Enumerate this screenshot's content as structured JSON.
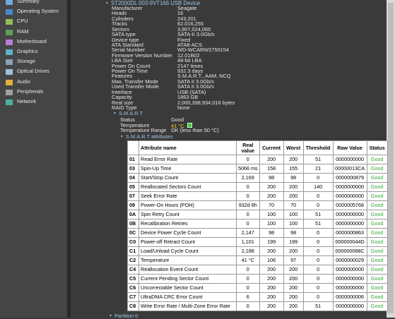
{
  "sidebar": [
    "Summary",
    "Operating System",
    "CPU",
    "RAM",
    "Motherboard",
    "Graphics",
    "Storage",
    "Optical Drives",
    "Audio",
    "Peripherals",
    "Network"
  ],
  "device": {
    "title": "ST2000DL 003-9VT166 USB Device",
    "properties": [
      [
        "Manufacturer",
        "Seagate"
      ],
      [
        "Heads",
        "16"
      ],
      [
        "Cylinders",
        "243,201"
      ],
      [
        "Tracks",
        "62,016,255"
      ],
      [
        "Sectors",
        "3,907,024,065"
      ],
      [
        "SATA type",
        "SATA-II 3.0Gb/s"
      ],
      [
        "Device type",
        "Fixed"
      ],
      [
        "ATA Standard",
        "ATA8-ACS"
      ],
      [
        "Serial Number",
        "WD-WCARW2750154"
      ],
      [
        "Firmware Version Number",
        "12.01B02"
      ],
      [
        "LBA Size",
        "48-bit LBA"
      ],
      [
        "Power On Count",
        "2147 times"
      ],
      [
        "Power On Time",
        "932.3 days"
      ],
      [
        "Features",
        "S.M.A.R.T., AAM, NCQ"
      ],
      [
        "Max. Transfer Mode",
        "SATA II 3.0Gb/s"
      ],
      [
        "Used Transfer Mode",
        "SATA II 3.0Gb/s"
      ],
      [
        "Interface",
        "USB (SATA)"
      ],
      [
        "Capacity",
        "1863 GB"
      ],
      [
        "Real size",
        "2,000,398,934,016 bytes"
      ],
      [
        "RAID Type",
        "None"
      ]
    ],
    "smart": {
      "title": "S.M.A.R.T",
      "items": [
        [
          "Status",
          "Good"
        ],
        [
          "Temperature",
          "41 °C"
        ],
        [
          "Temperature Range",
          "OK (less than 50 °C)"
        ]
      ]
    },
    "attributes": {
      "title": "S.M.A.R.T attributes",
      "columns": [
        "",
        "Attribute name",
        "Real value",
        "Current",
        "Worst",
        "Threshold",
        "Raw Value",
        "Status"
      ],
      "rows": [
        [
          "01",
          "Read Error Rate",
          "0",
          "200",
          "200",
          "51",
          "0000000000",
          "Good"
        ],
        [
          "03",
          "Spin-Up Time",
          "5066 ms",
          "158",
          "155",
          "21",
          "00000013CA",
          "Good"
        ],
        [
          "04",
          "Start/Stop Count",
          "2,169",
          "98",
          "98",
          "0",
          "0000000879",
          "Good"
        ],
        [
          "05",
          "Reallocated Sectors Count",
          "0",
          "200",
          "200",
          "140",
          "0000000000",
          "Good"
        ],
        [
          "07",
          "Seek Error Rate",
          "0",
          "200",
          "200",
          "0",
          "0000000000",
          "Good"
        ],
        [
          "09",
          "Power-On Hours (POH)",
          "932d 8h",
          "70",
          "70",
          "0",
          "0000005768",
          "Good"
        ],
        [
          "0A",
          "Spin Retry Count",
          "0",
          "100",
          "100",
          "51",
          "0000000000",
          "Good"
        ],
        [
          "0B",
          "Recalibration Retries",
          "0",
          "100",
          "100",
          "51",
          "0000000000",
          "Good"
        ],
        [
          "0C",
          "Device Power Cycle Count",
          "2,147",
          "98",
          "98",
          "0",
          "0000000863",
          "Good"
        ],
        [
          "C0",
          "Power-off Retract Count",
          "1,101",
          "199",
          "199",
          "0",
          "000000044D",
          "Good"
        ],
        [
          "C1",
          "Load/Unload Cycle Count",
          "2,188",
          "200",
          "200",
          "0",
          "000000088C",
          "Good"
        ],
        [
          "C2",
          "Temperature",
          "41 °C",
          "106",
          "97",
          "0",
          "0000000029",
          "Good"
        ],
        [
          "C4",
          "Reallocation Event Count",
          "0",
          "200",
          "200",
          "0",
          "0000000000",
          "Good"
        ],
        [
          "C5",
          "Current Pending Sector Count",
          "0",
          "200",
          "200",
          "0",
          "0000000000",
          "Good"
        ],
        [
          "C6",
          "Uncorrectable Sector Count",
          "0",
          "200",
          "200",
          "0",
          "0000000000",
          "Good"
        ],
        [
          "C7",
          "UltraDMA CRC Error Count",
          "6",
          "200",
          "200",
          "0",
          "0000000006",
          "Good"
        ],
        [
          "C8",
          "Write Error Rate / Multi-Zone Error Rate",
          "0",
          "200",
          "200",
          "51",
          "0000000000",
          "Good"
        ]
      ]
    },
    "partition": "Partition 0"
  }
}
